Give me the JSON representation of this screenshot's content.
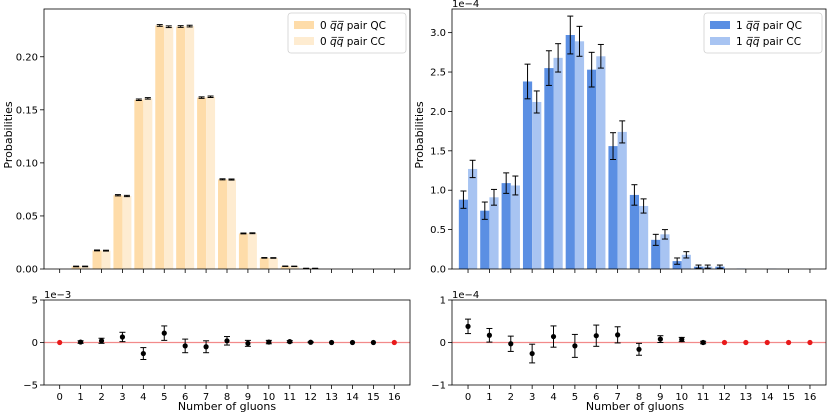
{
  "figure": {
    "xlabel": "Number of gluons",
    "ylabel": "Probabilities",
    "xticks": [
      "0",
      "1",
      "2",
      "3",
      "4",
      "5",
      "6",
      "7",
      "8",
      "9",
      "10",
      "11",
      "12",
      "13",
      "14",
      "15",
      "16"
    ]
  },
  "chart_data": [
    {
      "id": "left_top",
      "type": "bar",
      "ylabel": "Probabilities",
      "ylim": [
        0,
        0.245
      ],
      "yticks": [
        "0.00",
        "0.05",
        "0.10",
        "0.15",
        "0.20"
      ],
      "ytick_values": [
        0,
        0.05,
        0.1,
        0.15,
        0.2
      ],
      "offset_text": "",
      "legend_position": "top-right",
      "categories": [
        0,
        1,
        2,
        3,
        4,
        5,
        6,
        7,
        8,
        9,
        10,
        11,
        12,
        13,
        14,
        15,
        16
      ],
      "series": [
        {
          "name": "0 q̄q pair QC",
          "legend_pre": "0 ",
          "legend_math": "q̅q̅",
          "legend_post": " pair QC",
          "color": "#fedca9",
          "values": [
            0.0001,
            0.0024,
            0.0175,
            0.0695,
            0.1595,
            0.2295,
            0.2285,
            0.1615,
            0.0845,
            0.0335,
            0.0105,
            0.0026,
            0.0006,
            0.0001,
            0.0,
            0.0,
            0.0
          ],
          "errors": [
            0,
            0.0003,
            0.0004,
            0.0006,
            0.0007,
            0.0008,
            0.0008,
            0.0007,
            0.0005,
            0.0004,
            0.0003,
            0.0002,
            0.0001,
            0,
            0,
            0,
            0
          ]
        },
        {
          "name": "0 q̄q pair CC",
          "legend_pre": "0 ",
          "legend_math": "q̅q̅",
          "legend_post": " pair CC",
          "color": "#feecd1",
          "values": [
            0.0001,
            0.0024,
            0.0173,
            0.0688,
            0.1608,
            0.2283,
            0.2289,
            0.1623,
            0.0843,
            0.0337,
            0.0104,
            0.0025,
            0.0006,
            0.0001,
            0.0,
            0.0,
            0.0
          ],
          "errors": [
            0,
            0.0003,
            0.0004,
            0.0006,
            0.0007,
            0.0008,
            0.0008,
            0.0007,
            0.0005,
            0.0004,
            0.0003,
            0.0002,
            0.0001,
            0,
            0,
            0,
            0
          ]
        }
      ]
    },
    {
      "id": "right_top",
      "type": "bar",
      "ylabel": "",
      "ylim": [
        0,
        3.3
      ],
      "yticks": [
        "0.0",
        "0.5",
        "1.0",
        "1.5",
        "2.0",
        "2.5",
        "3.0"
      ],
      "ytick_values": [
        0,
        0.5,
        1.0,
        1.5,
        2.0,
        2.5,
        3.0
      ],
      "offset_text": "1e−4",
      "legend_position": "top-right",
      "categories": [
        0,
        1,
        2,
        3,
        4,
        5,
        6,
        7,
        8,
        9,
        10,
        11,
        12,
        13,
        14,
        15,
        16
      ],
      "series": [
        {
          "name": "1 q̄q pair QC",
          "legend_pre": "1 ",
          "legend_math": "q̅q̅",
          "legend_post": " pair QC",
          "color": "#5b8fe3",
          "values": [
            0.88,
            0.74,
            1.09,
            2.38,
            2.55,
            2.97,
            2.53,
            1.56,
            0.94,
            0.37,
            0.1,
            0.03,
            0.03,
            0.005,
            0,
            0,
            0
          ],
          "errors": [
            0.11,
            0.11,
            0.13,
            0.22,
            0.22,
            0.24,
            0.22,
            0.17,
            0.13,
            0.07,
            0.04,
            0.02,
            0.02,
            0,
            0,
            0,
            0
          ]
        },
        {
          "name": "1 q̄q pair CC",
          "legend_pre": "1 ",
          "legend_math": "q̅q̅",
          "legend_post": " pair CC",
          "color": "#a8c4f2",
          "values": [
            1.27,
            0.91,
            1.06,
            2.12,
            2.68,
            2.89,
            2.7,
            1.74,
            0.8,
            0.44,
            0.18,
            0.03,
            0.0,
            0.0,
            0.005,
            0,
            0
          ],
          "errors": [
            0.11,
            0.1,
            0.12,
            0.14,
            0.18,
            0.19,
            0.15,
            0.14,
            0.09,
            0.06,
            0.04,
            0.02,
            0,
            0,
            0,
            0,
            0
          ]
        }
      ]
    },
    {
      "id": "left_bottom",
      "type": "scatter",
      "ylim": [
        -5,
        5
      ],
      "yticks": [
        "−5",
        "0",
        "5"
      ],
      "ytick_values": [
        -5,
        0,
        5
      ],
      "offset_text": "1e−3",
      "x": [
        0,
        1,
        2,
        3,
        4,
        5,
        6,
        7,
        8,
        9,
        10,
        11,
        12,
        13,
        14,
        15,
        16
      ],
      "y": [
        0,
        0.05,
        0.2,
        0.65,
        -1.3,
        1.1,
        -0.4,
        -0.5,
        0.2,
        -0.1,
        0.05,
        0.1,
        0.03,
        0,
        0,
        0,
        0
      ],
      "errors": [
        0,
        0.15,
        0.3,
        0.55,
        0.7,
        0.85,
        0.8,
        0.7,
        0.5,
        0.35,
        0.2,
        0.12,
        0.05,
        0,
        0,
        0,
        0
      ],
      "red": [
        true,
        false,
        false,
        false,
        false,
        false,
        false,
        false,
        false,
        false,
        false,
        false,
        false,
        false,
        false,
        false,
        true
      ],
      "point_color": "#000000",
      "zero_point_color": "#e8191a",
      "reference_line_color": "#f28a8a"
    },
    {
      "id": "right_bottom",
      "type": "scatter",
      "ylim": [
        -1,
        1
      ],
      "yticks": [
        "−1",
        "0",
        "1"
      ],
      "ytick_values": [
        -1,
        0,
        1
      ],
      "offset_text": "1e−4",
      "x": [
        0,
        1,
        2,
        3,
        4,
        5,
        6,
        7,
        8,
        9,
        10,
        11,
        12,
        13,
        14,
        15,
        16
      ],
      "y": [
        0.38,
        0.17,
        -0.03,
        -0.26,
        0.14,
        -0.08,
        0.16,
        0.18,
        -0.16,
        0.08,
        0.07,
        0.0,
        0.0,
        0,
        0,
        0,
        0
      ],
      "errors": [
        0.17,
        0.16,
        0.18,
        0.22,
        0.25,
        0.27,
        0.25,
        0.19,
        0.14,
        0.08,
        0.05,
        0.03,
        0,
        0,
        0,
        0,
        0
      ],
      "red": [
        false,
        false,
        false,
        false,
        false,
        false,
        false,
        false,
        false,
        false,
        false,
        false,
        true,
        true,
        true,
        true,
        true
      ],
      "point_color": "#000000",
      "zero_point_color": "#e8191a",
      "reference_line_color": "#f28a8a"
    }
  ]
}
